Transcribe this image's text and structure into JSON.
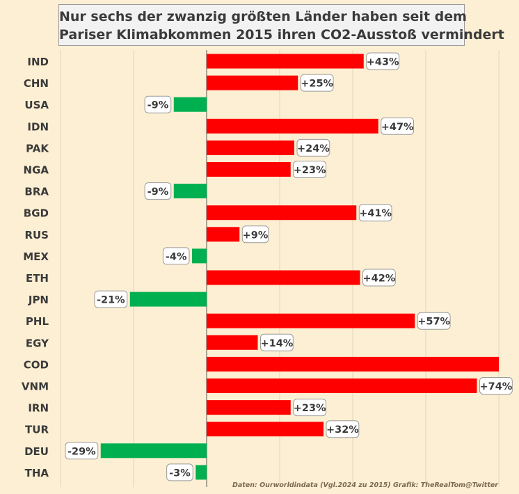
{
  "title_lines": [
    "Nur sechs der zwanzig größten Länder haben seit dem",
    "Pariser Klimabkommen 2015 ihren CO2-Ausstoß vermindert"
  ],
  "source": "Daten: Ourworldindata (Vgl.2024 zu 2015)  Grafik: TheRealTom@Twitter",
  "colors": {
    "increase": "#ff0000",
    "decrease": "#00b050",
    "background": "#fdefd3"
  },
  "chart_data": {
    "type": "bar",
    "orientation": "horizontal",
    "categories": [
      "IND",
      "CHN",
      "USA",
      "IDN",
      "PAK",
      "NGA",
      "BRA",
      "BGD",
      "RUS",
      "MEX",
      "ETH",
      "JPN",
      "PHL",
      "EGY",
      "COD",
      "VNM",
      "IRN",
      "TUR",
      "DEU",
      "THA"
    ],
    "values": [
      43,
      25,
      -9,
      47,
      24,
      23,
      -9,
      41,
      9,
      -4,
      42,
      -21,
      57,
      14,
      80,
      74,
      23,
      32,
      -29,
      -3
    ],
    "labels": [
      "+43%",
      "+25%",
      "-9%",
      "+47%",
      "+24%",
      "+23%",
      "-9%",
      "+41%",
      "+9%",
      "-4%",
      "+42%",
      "-21%",
      "+57%",
      "+14%",
      "",
      "+74%",
      "+23%",
      "+32%",
      "-29%",
      "-3%"
    ],
    "unit": "%",
    "xlim": [
      -40,
      80
    ],
    "grid": "vertical gridlines every 20",
    "legend": "none"
  }
}
